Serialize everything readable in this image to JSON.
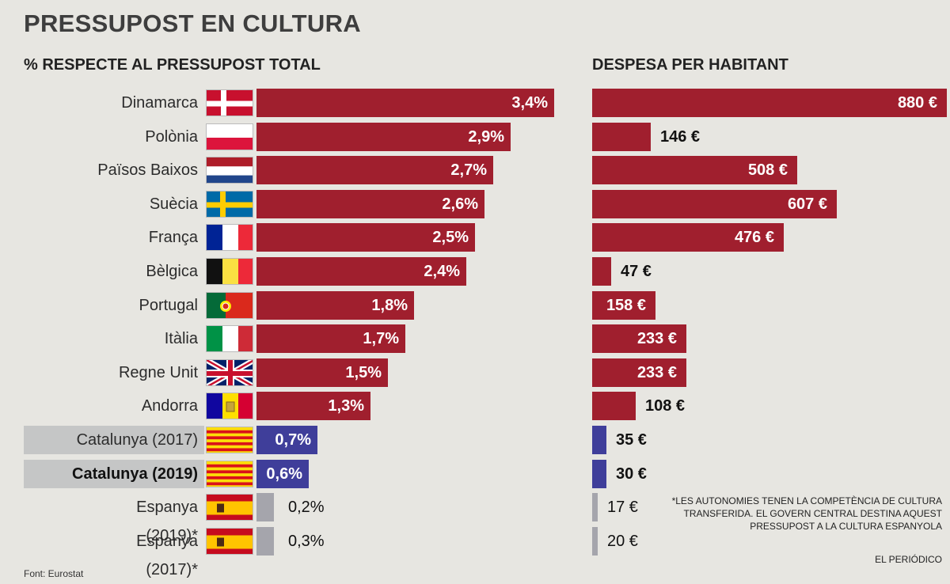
{
  "title": "PRESSUPOST EN CULTURA",
  "subtitle_left": "% RESPECTE AL PRESSUPOST TOTAL",
  "subtitle_right": "DESPESA PER HABITANT",
  "note": "*LES AUTONOMIES TENEN LA COMPETÈNCIA DE CULTURA TRANSFERIDA. EL GOVERN CENTRAL DESTINA AQUEST PRESSUPOST A LA CULTURA ESPANYOLA",
  "source": "Font: Eurostat",
  "credit": "EL PERIÓDICO",
  "colors": {
    "red": "#a01f2e",
    "blue": "#3f3e9a",
    "grey": "#a5a5ac"
  },
  "chart_data": [
    {
      "type": "bar",
      "orientation": "horizontal",
      "title": "% RESPECTE AL PRESSUPOST TOTAL",
      "categories": [
        "Dinamarca",
        "Polònia",
        "Països Baixos",
        "Suècia",
        "França",
        "Bèlgica",
        "Portugal",
        "Itàlia",
        "Regne Unit",
        "Andorra",
        "Catalunya (2017)",
        "Catalunya (2019)",
        "Espanya (2019)*",
        "Espanya (2017)*"
      ],
      "values": [
        3.4,
        2.9,
        2.7,
        2.6,
        2.5,
        2.4,
        1.8,
        1.7,
        1.5,
        1.3,
        0.7,
        0.6,
        0.2,
        0.3
      ],
      "labels": [
        "3,4%",
        "2,9%",
        "2,7%",
        "2,6%",
        "2,5%",
        "2,4%",
        "1,8%",
        "1,7%",
        "1,5%",
        "1,3%",
        "0,7%",
        "0,6%",
        "0,2%",
        "0,3%"
      ],
      "bar_colors": [
        "red",
        "red",
        "red",
        "red",
        "red",
        "red",
        "red",
        "red",
        "red",
        "red",
        "blue",
        "blue",
        "grey",
        "grey"
      ],
      "flags": [
        "dk",
        "pl",
        "nl",
        "se",
        "fr",
        "be",
        "pt",
        "it",
        "gb",
        "ad",
        "cat",
        "cat",
        "es",
        "es"
      ],
      "highlight": [
        false,
        false,
        false,
        false,
        false,
        false,
        false,
        false,
        false,
        false,
        true,
        true,
        false,
        false
      ],
      "bold": [
        false,
        false,
        false,
        false,
        false,
        false,
        false,
        false,
        false,
        false,
        false,
        true,
        false,
        false
      ],
      "xlim": [
        0,
        3.4
      ]
    },
    {
      "type": "bar",
      "orientation": "horizontal",
      "title": "DESPESA PER HABITANT",
      "categories": [
        "Dinamarca",
        "Polònia",
        "Països Baixos",
        "Suècia",
        "França",
        "Bèlgica",
        "Portugal",
        "Itàlia",
        "Regne Unit",
        "Andorra",
        "Catalunya (2017)",
        "Catalunya (2019)",
        "Espanya (2019)*",
        "Espanya (2017)*"
      ],
      "values": [
        880,
        146,
        508,
        607,
        476,
        47,
        158,
        233,
        233,
        108,
        35,
        30,
        17,
        20
      ],
      "labels": [
        "880 €",
        "146 €",
        "508 €",
        "607 €",
        "476 €",
        "47 €",
        "158 €",
        "233 €",
        "233 €",
        "108 €",
        "35 €",
        "30 €",
        "17 €",
        "20 €"
      ],
      "bar_colors": [
        "red",
        "red",
        "red",
        "red",
        "red",
        "red",
        "red",
        "red",
        "red",
        "red",
        "blue",
        "blue",
        "grey",
        "grey"
      ],
      "xlim": [
        0,
        880
      ]
    }
  ]
}
